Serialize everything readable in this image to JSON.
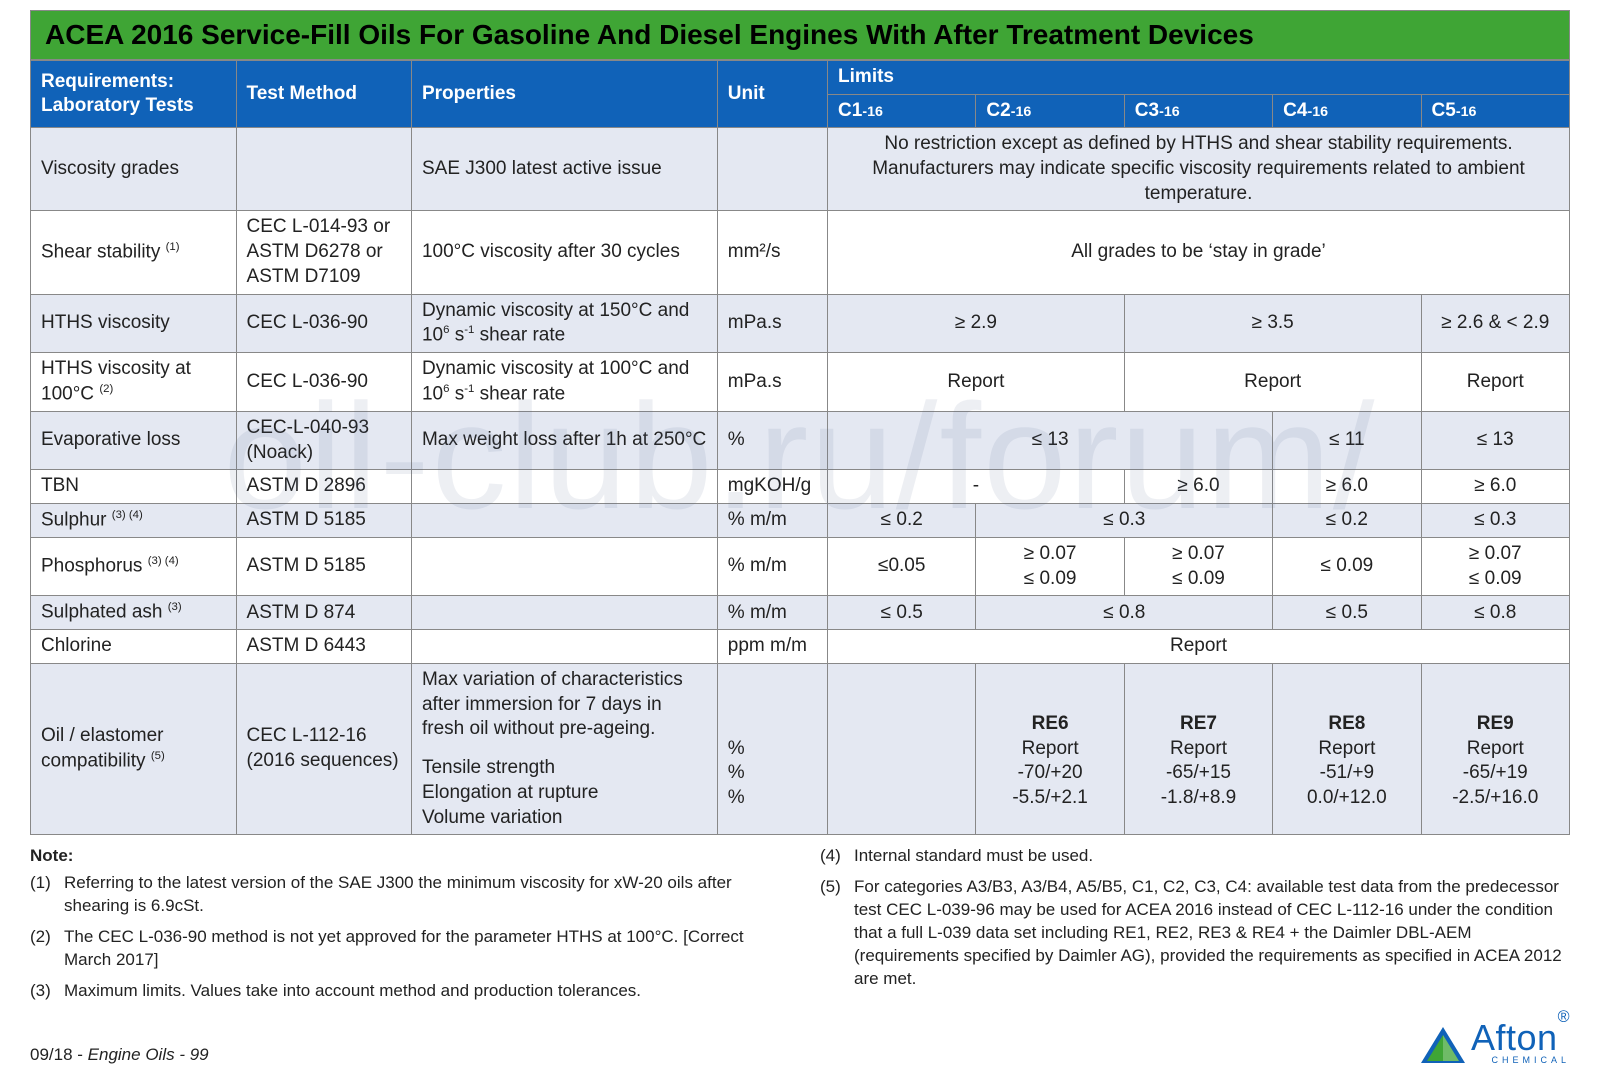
{
  "title": "ACEA 2016 Service-Fill Oils For Gasoline And Diesel Engines With After Treatment Devices",
  "colors": {
    "header_bg": "#1062b8",
    "title_bg": "#3fa535",
    "band0": "#e4e8f2",
    "band1": "#ffffff",
    "border": "#888888",
    "text": "#222222"
  },
  "columns": {
    "req": "Requirements: Laboratory Tests",
    "method": "Test Method",
    "props": "Properties",
    "unit": "Unit",
    "limits": "Limits",
    "c": [
      "C1",
      "C2",
      "C3",
      "C4",
      "C5"
    ],
    "csuffix": "-16"
  },
  "rows": {
    "visc": {
      "req": "Viscosity grades",
      "method": "",
      "props": "SAE J300 latest active issue",
      "unit": "",
      "merged": "No restriction except as defined by HTHS and shear stability requirements. Manufacturers may indicate specific viscosity requirements related to ambient temperature."
    },
    "shear": {
      "req_html": "Shear stability <sup>(1)</sup>",
      "method": "CEC L-014-93 or ASTM D6278 or ASTM D7109",
      "props": "100°C viscosity after 30 cycles",
      "unit": "mm²/s",
      "merged": "All grades to be ‘stay in grade’"
    },
    "hths": {
      "req": "HTHS viscosity",
      "method": "CEC L-036-90",
      "props_html": "Dynamic viscosity at 150°C and 10<sup>6</sup> s<sup>-1</sup> shear rate",
      "unit": "mPa.s",
      "c12": "≥ 2.9",
      "c34": "≥ 3.5",
      "c5": "≥ 2.6 & < 2.9"
    },
    "hths100": {
      "req_html": "HTHS viscosity at 100°C <sup>(2)</sup>",
      "method": "CEC L-036-90",
      "props_html": "Dynamic viscosity at 100°C and 10<sup>6</sup> s<sup>-1</sup> shear rate",
      "unit": "mPa.s",
      "c12": "Report",
      "c34": "Report",
      "c5": "Report"
    },
    "evap": {
      "req": "Evaporative loss",
      "method": "CEC-L-040-93 (Noack)",
      "props": "Max weight loss after 1h at 250°C",
      "unit": "%",
      "c123": "≤ 13",
      "c4": "≤ 11",
      "c5": "≤ 13"
    },
    "tbn": {
      "req": "TBN",
      "method": "ASTM D 2896",
      "props": "",
      "unit": "mgKOH/g",
      "c12": "-",
      "c3": "≥ 6.0",
      "c4": "≥ 6.0",
      "c5": "≥ 6.0"
    },
    "sulph": {
      "req_html": "Sulphur <sup>(3) (4)</sup>",
      "method": "ASTM D 5185",
      "props": "",
      "unit": "% m/m",
      "c1": "≤ 0.2",
      "c23": "≤ 0.3",
      "c4": "≤ 0.2",
      "c5": "≤ 0.3"
    },
    "phos": {
      "req_html": "Phosphorus <sup>(3) (4)</sup>",
      "method": "ASTM D 5185",
      "props": "",
      "unit": "% m/m",
      "c1": "≤0.05",
      "c2_html": "≥ 0.07<br>≤ 0.09",
      "c3_html": "≥ 0.07<br>≤ 0.09",
      "c4": "≤ 0.09",
      "c5_html": "≥ 0.07<br>≤ 0.09"
    },
    "ash": {
      "req_html": "Sulphated ash <sup>(3)</sup>",
      "method": "ASTM D 874",
      "props": "",
      "unit": "% m/m",
      "c1": "≤ 0.5",
      "c23": "≤ 0.8",
      "c4": "≤ 0.5",
      "c5": "≤ 0.8"
    },
    "chlor": {
      "req": "Chlorine",
      "method": "ASTM D 6443",
      "props": "",
      "unit": "ppm m/m",
      "merged": "Report"
    },
    "elast": {
      "req_html": "Oil / elastomer compatibility <sup>(5)</sup>",
      "method": "CEC L-112-16 (2016 sequences)",
      "props_lines": [
        "Max variation of characteristics after immersion for 7 days in fresh oil without pre-ageing.",
        "",
        "Tensile strength",
        "Elongation at rupture",
        "Volume variation"
      ],
      "unit_lines": [
        "",
        "",
        "%",
        "%",
        "%"
      ],
      "blank_col": "",
      "cols": [
        {
          "head": "RE6",
          "vals": [
            "Report",
            "-70/+20",
            "-5.5/+2.1"
          ]
        },
        {
          "head": "RE7",
          "vals": [
            "Report",
            "-65/+15",
            "-1.8/+8.9"
          ]
        },
        {
          "head": "RE8",
          "vals": [
            "Report",
            "-51/+9",
            "0.0/+12.0"
          ]
        },
        {
          "head": "RE9",
          "vals": [
            "Report",
            "-65/+19",
            "-2.5/+16.0"
          ]
        }
      ]
    }
  },
  "notes": {
    "title": "Note:",
    "left": [
      {
        "n": "(1)",
        "t": "Referring to the latest version of the SAE J300 the minimum viscosity for xW-20 oils after shearing is 6.9cSt."
      },
      {
        "n": "(2)",
        "t": "The CEC L-036-90 method is not yet approved for the parameter HTHS at 100°C. [Correct March 2017]"
      },
      {
        "n": "(3)",
        "t": "Maximum limits. Values take into account method and production tolerances."
      }
    ],
    "right": [
      {
        "n": "(4)",
        "t": "Internal standard must be used."
      },
      {
        "n": "(5)",
        "t": "For categories A3/B3, A3/B4, A5/B5, C1, C2, C3, C4: available test data from the predecessor test CEC L-039-96 may be used for ACEA 2016 instead of CEC L-112-16 under the condition that a full L-039 data set including RE1, RE2, RE3 & RE4 + the Daimler DBL-AEM (requirements specified by Daimler AG), provided the requirements as specified in ACEA 2012 are met."
      }
    ]
  },
  "footer": {
    "pub": "09/18 - Engine Oils - 99",
    "logo_text": "Afton",
    "logo_chem": "CHEMICAL"
  },
  "watermark": "oil-club.ru/forum/"
}
